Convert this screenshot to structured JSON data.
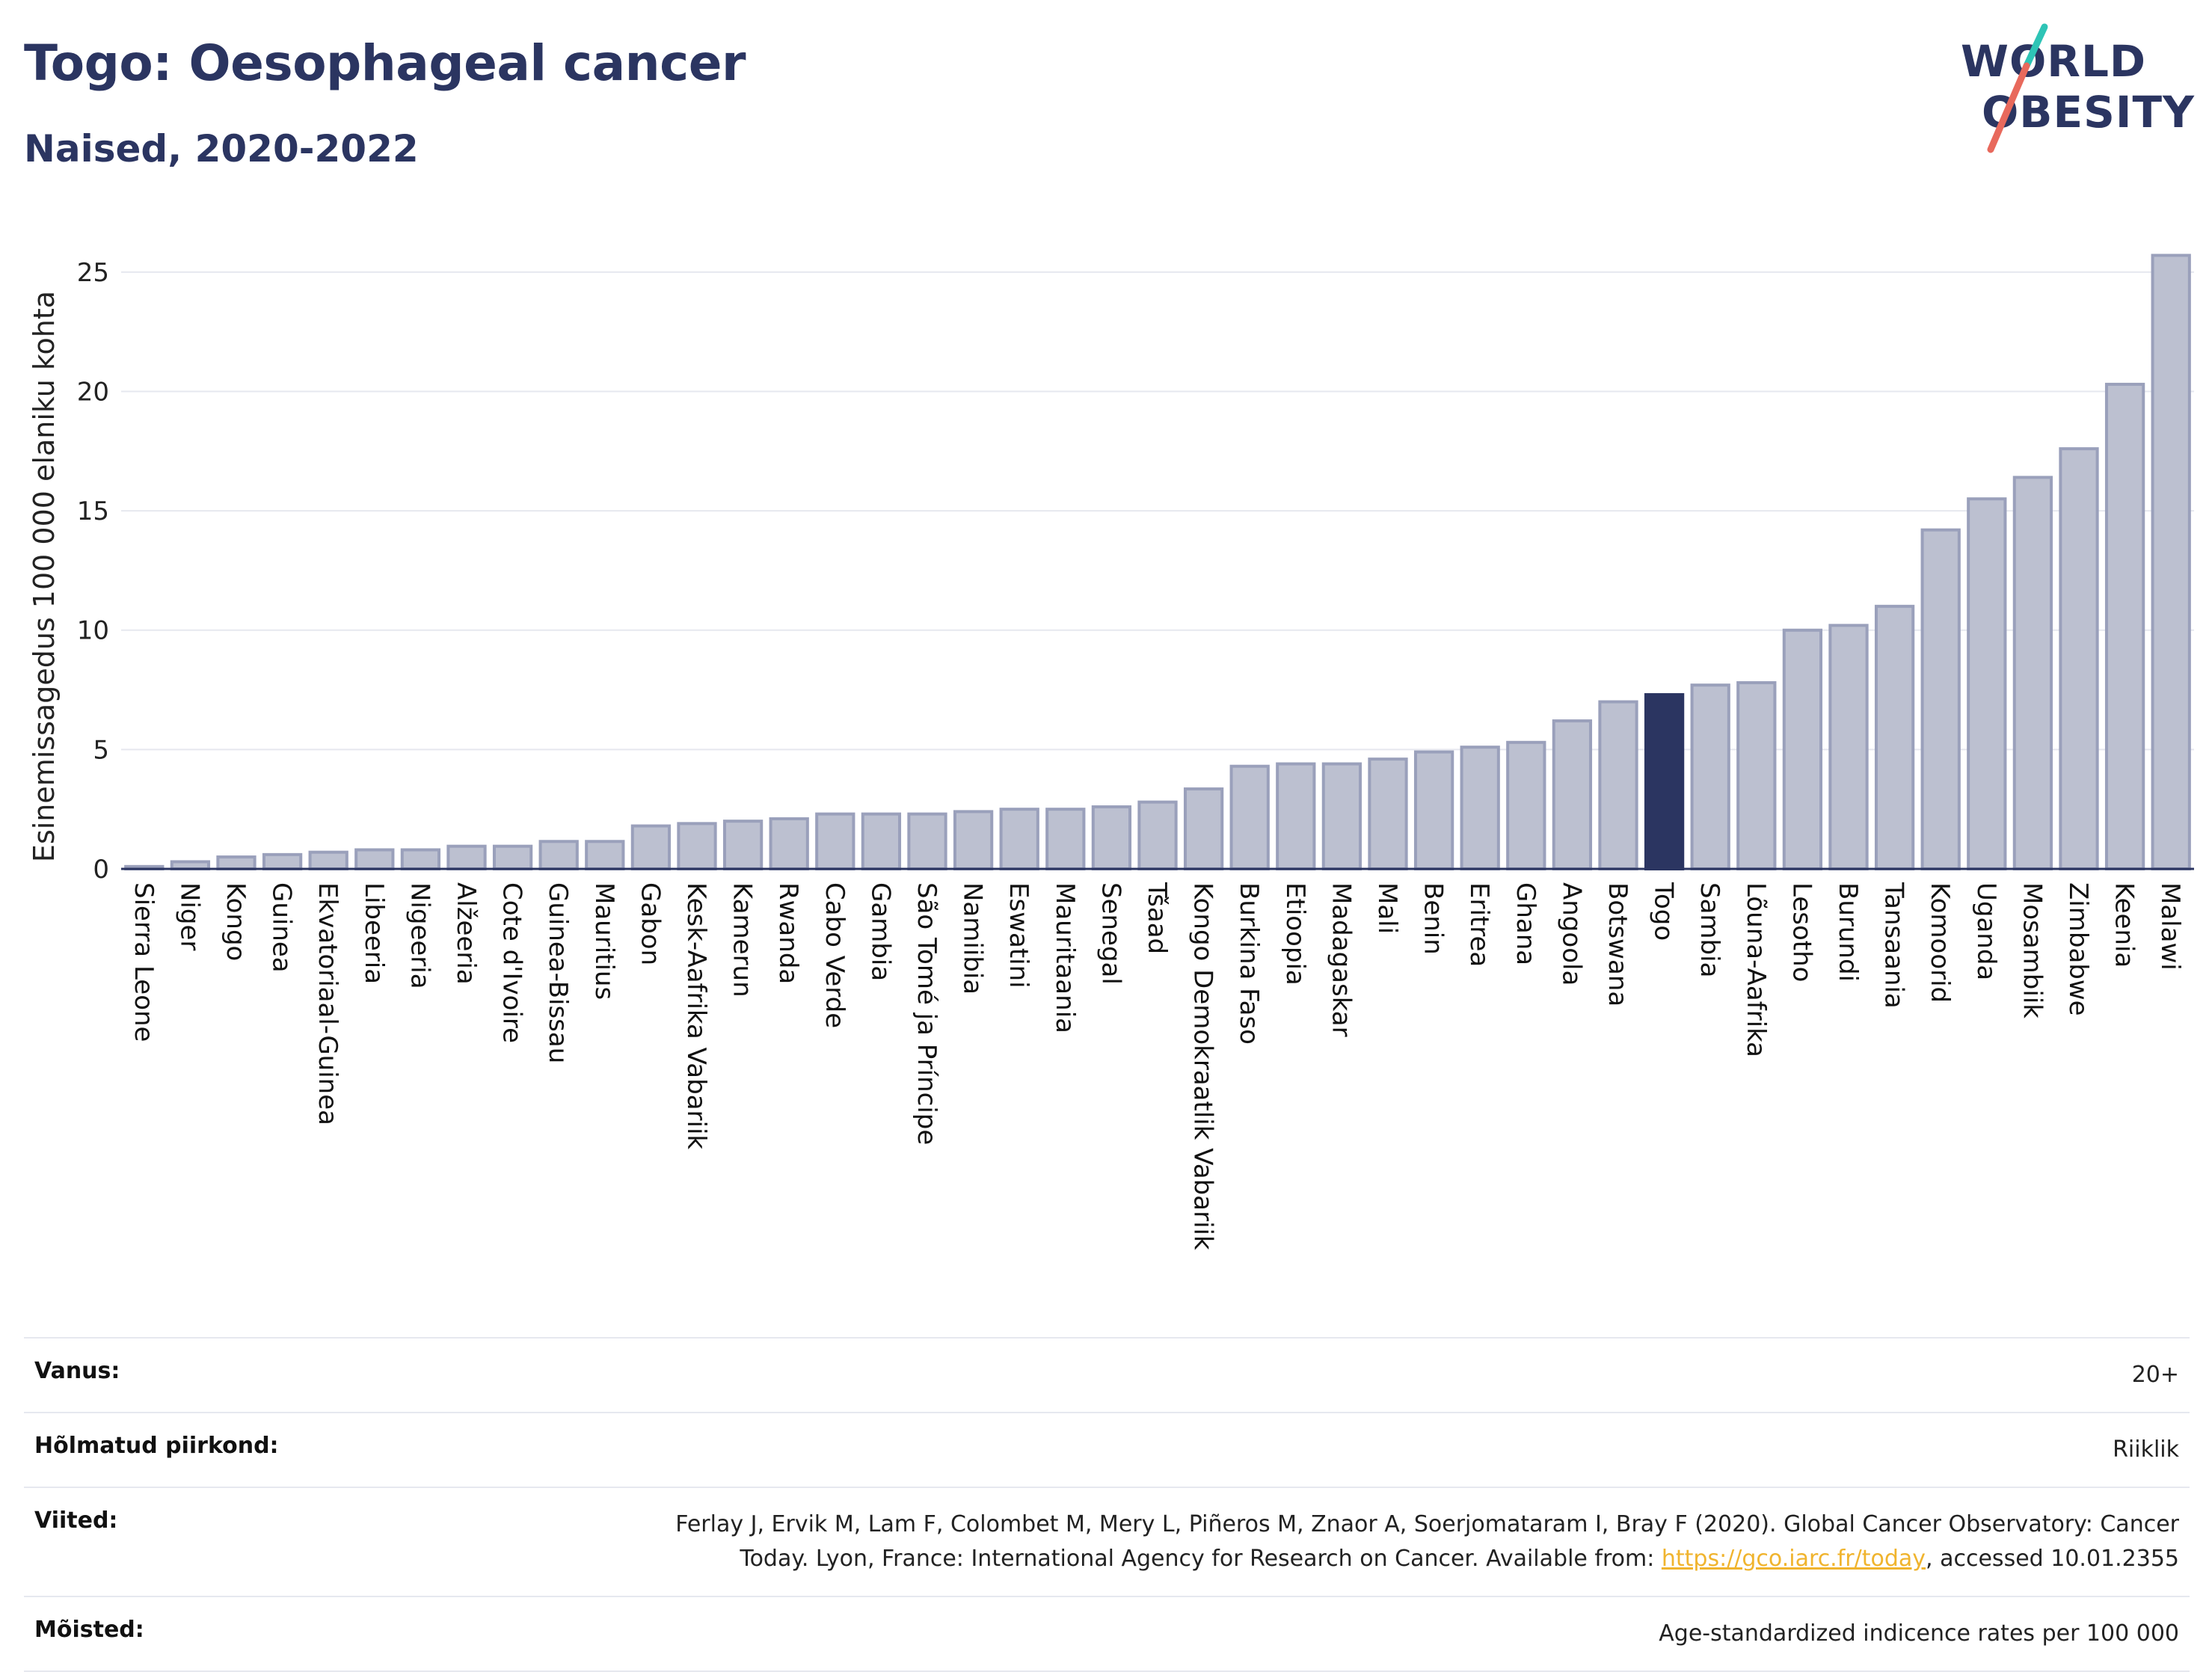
{
  "header": {
    "title": "Togo: Oesophageal cancer",
    "subtitle": "Naised, 2020-2022"
  },
  "logo": {
    "line1": "WORLD",
    "line2": "OBESITY",
    "colors": {
      "text": "#2b3561",
      "slash_top": "#2ec4b6",
      "slash_bottom": "#e8695c"
    }
  },
  "colors": {
    "bar_fill": "#bcc0d0",
    "bar_stroke": "#9aa0bb",
    "highlight": "#2b3561",
    "grid": "#e6e8ef",
    "axis": "#2b3561"
  },
  "chart_data": {
    "type": "bar",
    "ylabel": "Esinemissagedus 100 000 elaniku kohta",
    "ylim": [
      0,
      27
    ],
    "yticks": [
      0,
      5,
      10,
      15,
      20,
      25
    ],
    "grid": true,
    "highlight": "Togo",
    "categories": [
      "Sierra Leone",
      "Niger",
      "Kongo",
      "Guinea",
      "Ekvatoriaal-Guinea",
      "Libeeria",
      "Nigeeria",
      "Alžeeria",
      "Cote d'Ivoire",
      "Guinea-Bissau",
      "Mauritius",
      "Gabon",
      "Kesk-Aafrika Vabariik",
      "Kamerun",
      "Rwanda",
      "Cabo Verde",
      "Gambia",
      "São Tomé ja Príncipe",
      "Namiibia",
      "Eswatini",
      "Mauritaania",
      "Senegal",
      "Tšaad",
      "Kongo Demokraatlik Vabariik",
      "Burkina Faso",
      "Etioopia",
      "Madagaskar",
      "Mali",
      "Benin",
      "Eritrea",
      "Ghana",
      "Angoola",
      "Botswana",
      "Togo",
      "Sambia",
      "Lõuna-Aafrika",
      "Lesotho",
      "Burundi",
      "Tansaania",
      "Komoorid",
      "Uganda",
      "Mosambiik",
      "Zimbabwe",
      "Keenia",
      "Malawi"
    ],
    "values": [
      0.1,
      0.3,
      0.5,
      0.6,
      0.7,
      0.8,
      0.8,
      0.95,
      0.95,
      1.15,
      1.15,
      1.8,
      1.9,
      2.0,
      2.1,
      2.3,
      2.3,
      2.3,
      2.4,
      2.5,
      2.5,
      2.6,
      2.8,
      3.35,
      4.3,
      4.4,
      4.4,
      4.6,
      4.9,
      5.1,
      5.3,
      6.2,
      7.0,
      7.3,
      7.7,
      7.8,
      10.0,
      10.2,
      11.0,
      14.2,
      15.5,
      16.4,
      17.6,
      20.3,
      25.7
    ]
  },
  "info": {
    "rows": [
      {
        "label": "Vanus:",
        "value": "20+"
      },
      {
        "label": "Hõlmatud piirkond:",
        "value": "Riiklik"
      },
      {
        "label": "Viited:",
        "value_line1": "Ferlay J, Ervik M, Lam F, Colombet M, Mery L, Piñeros M, Znaor A, Soerjomataram I, Bray F (2020). Global Cancer Observatory: Cancer",
        "value_line2_pre": "Today. Lyon, France: International Agency for Research on Cancer. Available from: ",
        "link": "https://gco.iarc.fr/today",
        "value_line2_post": ", accessed 10.01.2355"
      },
      {
        "label": "Mõisted:",
        "value": "Age-standardized indicence rates per 100 000"
      }
    ]
  }
}
